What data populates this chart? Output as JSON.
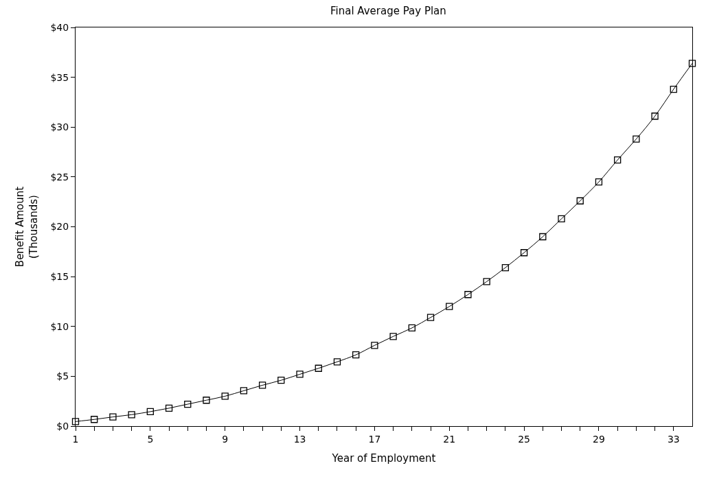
{
  "chart_data": {
    "type": "line",
    "title": "Final Average Pay Plan",
    "xlabel": "Year of Employment",
    "ylabel": "Benefit Amount\n(Thousands)",
    "x": [
      1,
      2,
      3,
      4,
      5,
      6,
      7,
      8,
      9,
      10,
      11,
      12,
      13,
      14,
      15,
      16,
      17,
      18,
      19,
      20,
      21,
      22,
      23,
      24,
      25,
      26,
      27,
      28,
      29,
      30,
      31,
      32,
      33,
      34
    ],
    "series": [
      {
        "color": "#000000",
        "values": [
          0.46,
          0.67,
          0.92,
          1.15,
          1.45,
          1.8,
          2.2,
          2.6,
          3.0,
          3.55,
          4.1,
          4.6,
          5.2,
          5.8,
          6.45,
          7.15,
          8.1,
          9.0,
          9.85,
          10.9,
          12.0,
          13.2,
          14.5,
          15.9,
          17.4,
          19.0,
          20.8,
          22.6,
          24.5,
          26.7,
          28.8,
          31.1,
          33.8,
          36.4
        ]
      }
    ],
    "xlim": [
      1,
      34
    ],
    "xticks": [
      1,
      {
        "value": 2,
        "label": null
      },
      {
        "value": 3,
        "label": null
      },
      {
        "value": 4,
        "label": null
      },
      5,
      {
        "value": 6,
        "label": null
      },
      {
        "value": 7,
        "label": null
      },
      {
        "value": 8,
        "label": null
      },
      9,
      {
        "value": 10,
        "label": null
      },
      {
        "value": 11,
        "label": null
      },
      {
        "value": 12,
        "label": null
      },
      13,
      {
        "value": 14,
        "label": null
      },
      {
        "value": 15,
        "label": null
      },
      {
        "value": 16,
        "label": null
      },
      17,
      {
        "value": 18,
        "label": null
      },
      {
        "value": 19,
        "label": null
      },
      {
        "value": 20,
        "label": null
      },
      21,
      {
        "value": 22,
        "label": null
      },
      {
        "value": 23,
        "label": null
      },
      {
        "value": 24,
        "label": null
      },
      25,
      {
        "value": 26,
        "label": null
      },
      {
        "value": 27,
        "label": null
      },
      {
        "value": 28,
        "label": null
      },
      29,
      {
        "value": 30,
        "label": null
      },
      {
        "value": 31,
        "label": null
      },
      {
        "value": 32,
        "label": null
      },
      33
    ],
    "ylim": [
      0,
      40
    ],
    "yticks": [
      {
        "value": 0,
        "label": "$0"
      },
      {
        "value": 5,
        "label": "$5"
      },
      {
        "value": 10,
        "label": "$10"
      },
      {
        "value": 15,
        "label": "$15"
      },
      {
        "value": 20,
        "label": "$20"
      },
      {
        "value": 25,
        "label": "$25"
      },
      {
        "value": 30,
        "label": "$30"
      },
      {
        "value": 35,
        "label": "$35"
      },
      {
        "value": 40,
        "label": "$40"
      }
    ],
    "marker": "square",
    "line_style": "solid"
  }
}
